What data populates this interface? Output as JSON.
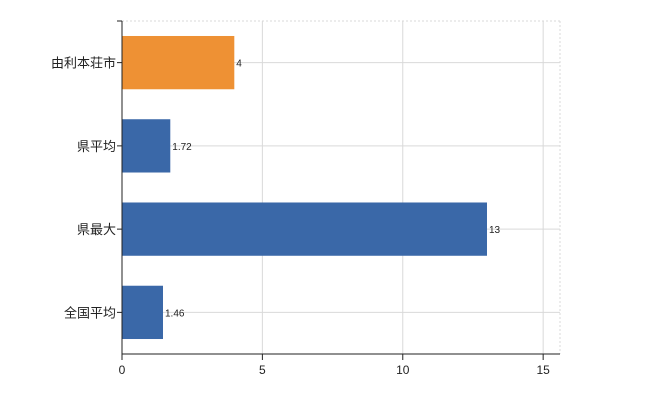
{
  "chart_data": {
    "type": "bar",
    "orientation": "horizontal",
    "categories": [
      "由利本荘市",
      "県平均",
      "県最大",
      "全国平均"
    ],
    "values": [
      4,
      1.72,
      13,
      1.46
    ],
    "data_labels": [
      "4",
      "1.72",
      "13",
      "1.46"
    ],
    "xlim": [
      0,
      15.6
    ],
    "xticks": [
      0,
      5,
      10,
      15
    ],
    "xtick_labels": [
      "0",
      "5",
      "10",
      "15"
    ],
    "grid": true,
    "legend": "none",
    "title": "",
    "xlabel": "",
    "ylabel": "",
    "colors": {
      "highlight": "#EE9134",
      "default": "#3A68A8",
      "grid": "#d9d9d9",
      "axis": "#222222"
    },
    "highlight_category": "由利本荘市"
  }
}
